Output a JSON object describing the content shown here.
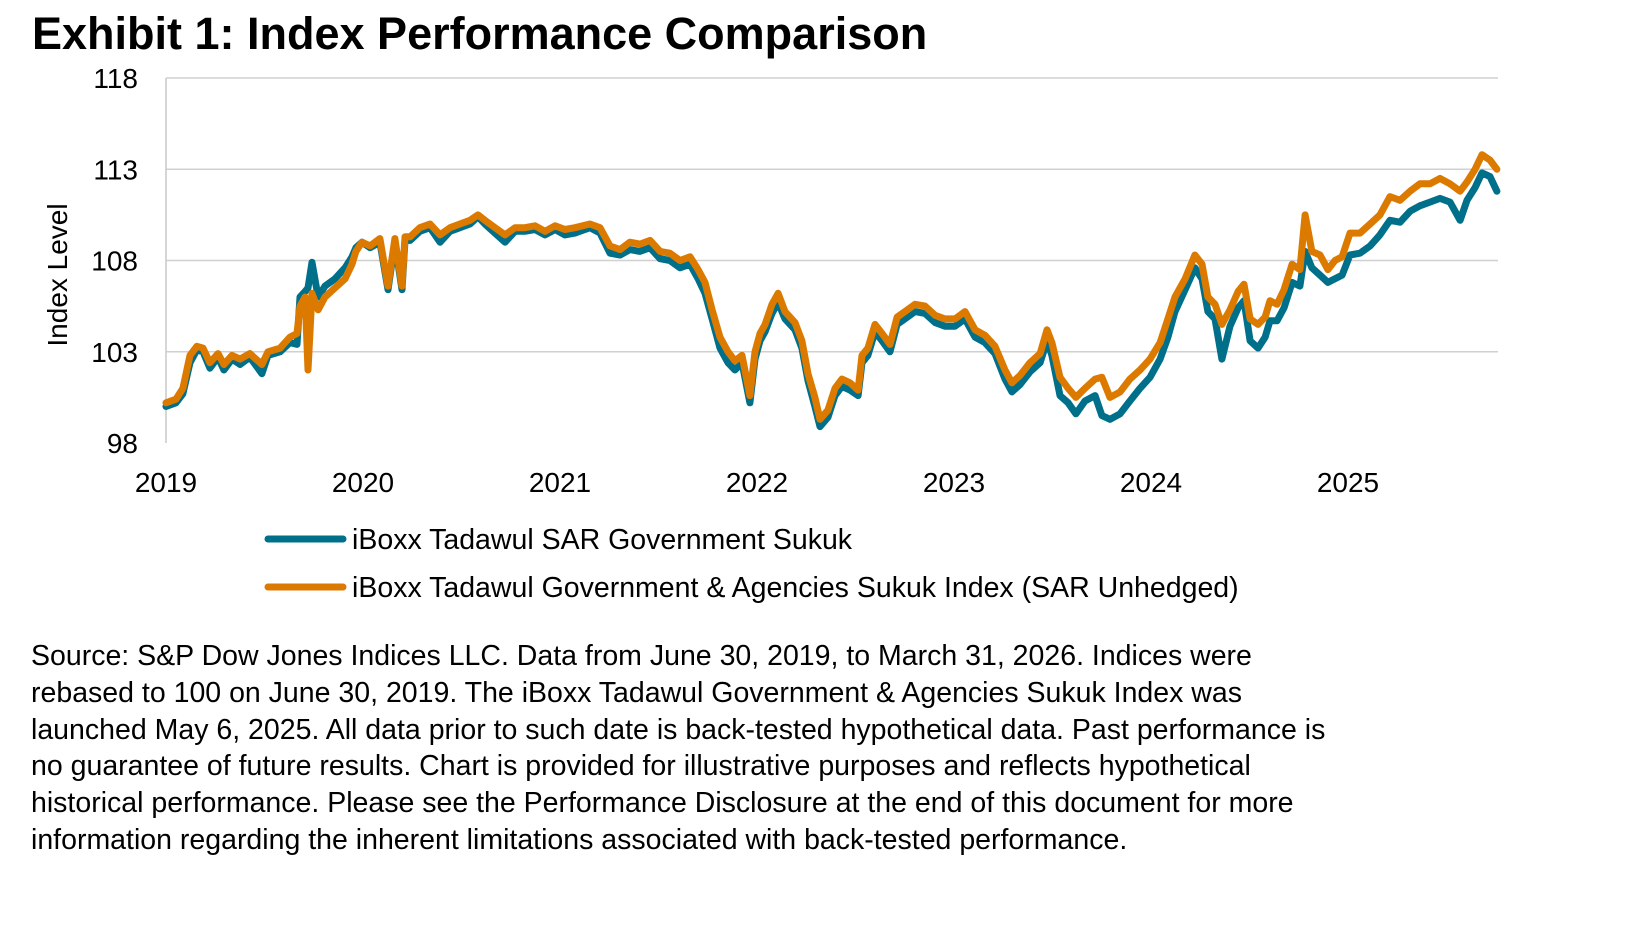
{
  "title": "Exhibit 1: Index Performance Comparison",
  "source_lines": [
    "Source: S&P Dow Jones Indices LLC.  Data from June 30, 2019, to March 31, 2026.  Indices were",
    "rebased to 100 on June 30, 2019.  The iBoxx Tadawul Government & Agencies Sukuk Index was",
    "launched May 6, 2025.  All data prior to such date is back-tested hypothetical data.  Past performance is",
    "no guarantee of future results.  Chart is provided for illustrative purposes and reflects hypothetical",
    "historical performance.  Please see the Performance Disclosure at the end of this document for more",
    "information regarding the inherent limitations associated with back-tested performance."
  ],
  "chart_data": {
    "type": "line",
    "title": "Exhibit 1: Index Performance Comparison",
    "xlabel": "",
    "ylabel": "Index Level",
    "xlim": [
      2019,
      2025.77
    ],
    "ylim": [
      98,
      118
    ],
    "x_ticks": [
      "2019",
      "2020",
      "2021",
      "2022",
      "2023",
      "2024",
      "2025"
    ],
    "y_ticks": [
      "98",
      "103",
      "108",
      "113",
      "118"
    ],
    "grid": "horizontal",
    "legend_placement": "bottom",
    "x": [
      2019.0,
      2019.051,
      2019.086,
      2019.122,
      2019.157,
      2019.188,
      2019.223,
      2019.264,
      2019.294,
      2019.335,
      2019.376,
      2019.426,
      2019.487,
      2019.518,
      2019.579,
      2019.629,
      2019.665,
      2019.68,
      2019.706,
      2019.721,
      2019.741,
      2019.772,
      2019.807,
      2019.858,
      2019.909,
      2019.944,
      2019.964,
      2019.995,
      2020.036,
      2020.086,
      2020.127,
      2020.162,
      2020.198,
      2020.213,
      2020.239,
      2020.289,
      2020.34,
      2020.391,
      2020.442,
      2020.492,
      2020.543,
      2020.584,
      2020.619,
      2020.67,
      2020.721,
      2020.772,
      2020.822,
      2020.873,
      2020.924,
      2020.975,
      2021.025,
      2021.076,
      2021.152,
      2021.203,
      2021.254,
      2021.305,
      2021.355,
      2021.406,
      2021.457,
      2021.508,
      2021.558,
      2021.609,
      2021.66,
      2021.701,
      2021.736,
      2021.772,
      2021.812,
      2021.853,
      2021.888,
      2021.924,
      2021.964,
      2021.99,
      2022.015,
      2022.041,
      2022.076,
      2022.107,
      2022.142,
      2022.193,
      2022.228,
      2022.259,
      2022.294,
      2022.32,
      2022.36,
      2022.396,
      2022.431,
      2022.472,
      2022.513,
      2022.533,
      2022.563,
      2022.599,
      2022.635,
      2022.675,
      2022.711,
      2022.751,
      2022.802,
      2022.853,
      2022.904,
      2022.954,
      2023.005,
      2023.056,
      2023.107,
      2023.157,
      2023.208,
      2023.259,
      2023.294,
      2023.335,
      2023.386,
      2023.437,
      2023.472,
      2023.497,
      2023.538,
      2023.579,
      2023.619,
      2023.665,
      2023.716,
      2023.751,
      2023.792,
      2023.843,
      2023.893,
      2023.944,
      2023.995,
      2024.046,
      2024.086,
      2024.122,
      2024.173,
      2024.223,
      2024.259,
      2024.289,
      2024.325,
      2024.36,
      2024.401,
      2024.442,
      2024.472,
      2024.503,
      2024.543,
      2024.579,
      2024.604,
      2024.64,
      2024.675,
      2024.716,
      2024.756,
      2024.782,
      2024.817,
      2024.858,
      2024.898,
      2024.934,
      2024.97,
      2025.01,
      2025.061,
      2025.112,
      2025.162,
      2025.213,
      2025.264,
      2025.315,
      2025.365,
      2025.416,
      2025.467,
      2025.518,
      2025.569,
      2025.604,
      2025.645,
      2025.68,
      2025.721,
      2025.756
    ],
    "series": [
      {
        "name": "iBoxx Tadawul SAR Government Sukuk",
        "color": "#006f8a",
        "values": [
          100.0,
          100.2,
          100.7,
          102.4,
          103.1,
          103.0,
          102.1,
          102.7,
          102.0,
          102.6,
          102.3,
          102.7,
          101.8,
          102.8,
          103.0,
          103.5,
          103.4,
          106.0,
          106.3,
          106.5,
          107.9,
          106.0,
          106.6,
          107.0,
          107.6,
          108.2,
          108.7,
          109.0,
          108.7,
          109.0,
          106.4,
          109.0,
          106.4,
          109.1,
          109.1,
          109.6,
          109.8,
          109.0,
          109.6,
          109.8,
          110.0,
          110.4,
          110.0,
          109.5,
          109.0,
          109.6,
          109.6,
          109.7,
          109.4,
          109.7,
          109.4,
          109.5,
          109.8,
          109.5,
          108.4,
          108.3,
          108.6,
          108.5,
          108.7,
          108.1,
          108.0,
          107.6,
          107.8,
          107.0,
          106.2,
          104.8,
          103.2,
          102.4,
          102.0,
          102.4,
          100.2,
          102.6,
          103.6,
          104.1,
          105.1,
          105.7,
          104.8,
          104.2,
          103.2,
          101.4,
          100.0,
          98.9,
          99.4,
          100.6,
          101.1,
          100.9,
          100.6,
          102.4,
          102.8,
          104.1,
          103.6,
          103.0,
          104.5,
          104.8,
          105.2,
          105.1,
          104.6,
          104.4,
          104.4,
          104.8,
          103.8,
          103.5,
          102.9,
          101.5,
          100.8,
          101.2,
          101.9,
          102.4,
          103.6,
          102.8,
          100.6,
          100.2,
          99.6,
          100.3,
          100.6,
          99.5,
          99.3,
          99.6,
          100.3,
          101.0,
          101.6,
          102.6,
          103.8,
          105.2,
          106.4,
          107.6,
          107.0,
          105.2,
          104.8,
          102.6,
          104.4,
          105.4,
          105.8,
          103.6,
          103.2,
          103.8,
          104.7,
          104.7,
          105.4,
          106.8,
          106.6,
          108.5,
          107.6,
          107.2,
          106.8,
          107.0,
          107.2,
          108.3,
          108.4,
          108.8,
          109.4,
          110.2,
          110.1,
          110.7,
          111.0,
          111.2,
          111.4,
          111.2,
          110.2,
          111.3,
          112.0,
          112.8,
          112.6,
          111.8
        ]
      },
      {
        "name": "iBoxx Tadawul Government & Agencies Sukuk Index (SAR Unhedged)",
        "color": "#dc7a00",
        "values": [
          100.2,
          100.4,
          101.0,
          102.8,
          103.3,
          103.2,
          102.4,
          102.9,
          102.3,
          102.8,
          102.6,
          102.9,
          102.3,
          103.0,
          103.2,
          103.8,
          104.0,
          105.5,
          106.0,
          102.0,
          106.2,
          105.3,
          106.0,
          106.5,
          107.0,
          107.8,
          108.5,
          109.0,
          108.8,
          109.2,
          106.6,
          109.2,
          106.6,
          109.3,
          109.3,
          109.8,
          110.0,
          109.4,
          109.8,
          110.0,
          110.2,
          110.5,
          110.2,
          109.8,
          109.4,
          109.8,
          109.8,
          109.9,
          109.6,
          109.9,
          109.7,
          109.8,
          110.0,
          109.8,
          108.8,
          108.6,
          109.0,
          108.9,
          109.1,
          108.5,
          108.4,
          108.0,
          108.2,
          107.5,
          106.8,
          105.3,
          103.8,
          103.0,
          102.5,
          102.8,
          100.6,
          103.0,
          104.0,
          104.5,
          105.6,
          106.2,
          105.2,
          104.6,
          103.6,
          101.8,
          100.5,
          99.3,
          99.8,
          101.0,
          101.5,
          101.3,
          100.9,
          102.8,
          103.2,
          104.5,
          104.0,
          103.4,
          104.9,
          105.2,
          105.6,
          105.5,
          105.0,
          104.8,
          104.8,
          105.2,
          104.2,
          103.9,
          103.3,
          102.0,
          101.3,
          101.7,
          102.4,
          102.9,
          104.2,
          103.5,
          101.6,
          101.0,
          100.5,
          101.0,
          101.5,
          101.6,
          100.5,
          100.8,
          101.5,
          102.0,
          102.6,
          103.5,
          104.8,
          106.0,
          107.0,
          108.3,
          107.8,
          106.0,
          105.6,
          104.5,
          105.3,
          106.3,
          106.7,
          104.8,
          104.5,
          104.9,
          105.8,
          105.6,
          106.4,
          107.8,
          107.5,
          110.5,
          108.5,
          108.3,
          107.5,
          108.0,
          108.2,
          109.5,
          109.5,
          110.0,
          110.5,
          111.5,
          111.3,
          111.8,
          112.2,
          112.2,
          112.5,
          112.2,
          111.8,
          112.3,
          113.0,
          113.8,
          113.5,
          113.0
        ]
      }
    ]
  }
}
